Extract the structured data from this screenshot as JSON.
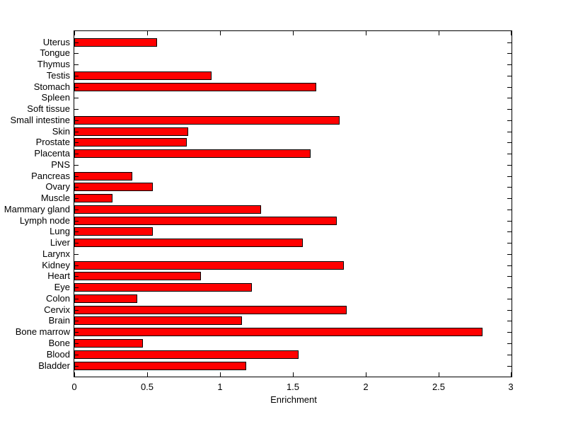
{
  "figure": {
    "background": "#ffffff",
    "axis_color": "#000000"
  },
  "chart_data": {
    "type": "bar",
    "orientation": "horizontal",
    "title": "",
    "xlabel": "Enrichment",
    "ylabel": "",
    "xlim": [
      0,
      3
    ],
    "x_ticks": [
      0,
      0.5,
      1,
      1.5,
      2,
      2.5,
      3
    ],
    "x_tick_labels": [
      "0",
      "0.5",
      "1",
      "1.5",
      "2",
      "2.5",
      "3"
    ],
    "grid": false,
    "legend": false,
    "bar_color": "#ff0000",
    "bar_edge_color": "#000000",
    "categories": [
      "Uterus",
      "Tongue",
      "Thymus",
      "Testis",
      "Stomach",
      "Spleen",
      "Soft tissue",
      "Small intestine",
      "Skin",
      "Prostate",
      "Placenta",
      "PNS",
      "Pancreas",
      "Ovary",
      "Muscle",
      "Mammary gland",
      "Lymph node",
      "Lung",
      "Liver",
      "Larynx",
      "Kidney",
      "Heart",
      "Eye",
      "Colon",
      "Cervix",
      "Brain",
      "Bone marrow",
      "Bone",
      "Blood",
      "Bladder"
    ],
    "values": [
      0.57,
      0,
      0,
      0.94,
      1.66,
      0,
      0,
      1.82,
      0.78,
      0.77,
      1.62,
      0,
      0.4,
      0.54,
      0.26,
      1.28,
      1.8,
      0.54,
      1.57,
      0,
      1.85,
      0.87,
      1.22,
      0.43,
      1.87,
      1.15,
      2.8,
      0.47,
      1.54,
      1.18
    ]
  }
}
